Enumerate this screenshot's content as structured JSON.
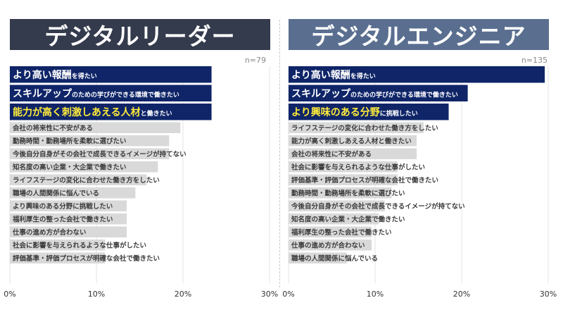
{
  "colors": {
    "left_banner": "#343b4d",
    "right_banner": "#5a6f90",
    "highlight_bar": "#0f2568",
    "normal_bar": "#d9d9d9",
    "highlight_text_white": "#ffffff",
    "highlight_text_yellow": "#ffeb3b"
  },
  "chart_data": [
    {
      "type": "bar",
      "orientation": "horizontal",
      "title": "デジタルリーダー",
      "annotation": "n=79",
      "xlim": [
        0,
        30
      ],
      "xticks": [
        "0%",
        "10%",
        "20%",
        "30%"
      ],
      "unit": "%",
      "bars": [
        {
          "main": "より高い報酬",
          "sub": "を得たい",
          "value": 23.3,
          "highlight": true,
          "yellow": false
        },
        {
          "main": "スキルアップ",
          "sub": "のための学びができる環境で働きたい",
          "value": 23.3,
          "highlight": true,
          "yellow": false
        },
        {
          "main": "能力が高く刺激しあえる人材",
          "sub": "と働きたい",
          "value": 23.3,
          "highlight": true,
          "yellow": true
        },
        {
          "main": "会社の将来性に不安がある",
          "sub": "",
          "value": 19.7,
          "highlight": false
        },
        {
          "main": "勤務時間・勤務場所を柔軟に選びたい",
          "sub": "",
          "value": 18.4,
          "highlight": false
        },
        {
          "main": "今後自分自身がその会社で成長できるイメージが持てない",
          "sub": "",
          "value": 18.4,
          "highlight": false
        },
        {
          "main": "知名度の高い企業・大企業で働きたい",
          "sub": "",
          "value": 17.1,
          "highlight": false
        },
        {
          "main": "ライフステージの変化に合わせた働き方をしたい",
          "sub": "",
          "value": 15.8,
          "highlight": false
        },
        {
          "main": "職場の人間関係に悩んでいる",
          "sub": "",
          "value": 14.5,
          "highlight": false
        },
        {
          "main": "より興味のある分野に挑戦したい",
          "sub": "",
          "value": 13.5,
          "highlight": false
        },
        {
          "main": "福利厚生の整った会社で働きたい",
          "sub": "",
          "value": 13.5,
          "highlight": false
        },
        {
          "main": "仕事の進め方が合わない",
          "sub": "",
          "value": 13.5,
          "highlight": false
        },
        {
          "main": "社会に影響を与えられるような仕事がしたい",
          "sub": "",
          "value": 11.0,
          "highlight": false
        },
        {
          "main": "評価基準・評価プロセスが明確な会社で働きたい",
          "sub": "",
          "value": 11.0,
          "highlight": false
        }
      ]
    },
    {
      "type": "bar",
      "orientation": "horizontal",
      "title": "デジタルエンジニア",
      "annotation": "n=135",
      "xlim": [
        0,
        30
      ],
      "xticks": [
        "0%",
        "10%",
        "20%",
        "30%"
      ],
      "unit": "%",
      "bars": [
        {
          "main": "より高い報酬",
          "sub": "を得たい",
          "value": 29.6,
          "highlight": true,
          "yellow": false
        },
        {
          "main": "スキルアップ",
          "sub": "のための学びができる環境で働きたい",
          "value": 20.7,
          "highlight": true,
          "yellow": false
        },
        {
          "main": "より興味のある分野",
          "sub": "に挑戦したい",
          "value": 18.5,
          "highlight": true,
          "yellow": true
        },
        {
          "main": "ライフステージの変化に合わせた働き方をしたい",
          "sub": "",
          "value": 15.6,
          "highlight": false
        },
        {
          "main": "能力が高く刺激しあえる人材と働きたい",
          "sub": "",
          "value": 14.8,
          "highlight": false
        },
        {
          "main": "会社の将来性に不安がある",
          "sub": "",
          "value": 14.8,
          "highlight": false
        },
        {
          "main": "社会に影響を与えられるような仕事がしたい",
          "sub": "",
          "value": 12.6,
          "highlight": false
        },
        {
          "main": "評価基準・評価プロセスが明確な会社で働きたい",
          "sub": "",
          "value": 12.6,
          "highlight": false
        },
        {
          "main": "勤務時間・勤務場所を柔軟に選びたい",
          "sub": "",
          "value": 11.9,
          "highlight": false
        },
        {
          "main": "今後自分自身がその会社で成長できるイメージが持てない",
          "sub": "",
          "value": 11.1,
          "highlight": false
        },
        {
          "main": "知名度の高い企業・大企業で働きたい",
          "sub": "",
          "value": 10.4,
          "highlight": false
        },
        {
          "main": "福利厚生の整った会社で働きたい",
          "sub": "",
          "value": 9.6,
          "highlight": false
        },
        {
          "main": "仕事の進め方が合わない",
          "sub": "",
          "value": 9.6,
          "highlight": false
        },
        {
          "main": "職場の人間関係に悩んでいる",
          "sub": "",
          "value": 6.7,
          "highlight": false
        }
      ]
    }
  ]
}
